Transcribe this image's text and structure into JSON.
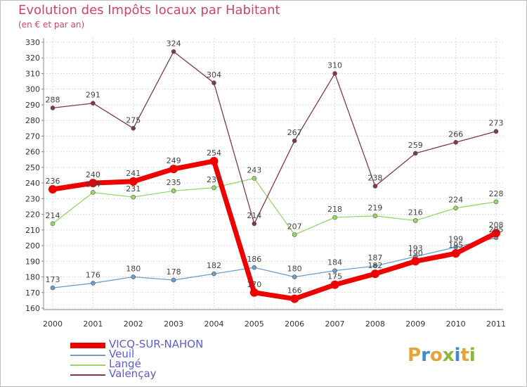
{
  "title": "Evolution des Impôts locaux par Habitant",
  "subtitle": "(en € et par an)",
  "logo": {
    "letters": [
      "P",
      "r",
      "o",
      "x",
      "i",
      "t",
      "i"
    ],
    "colors": [
      "#e8a23a",
      "#3e8ad8",
      "#e8a23a",
      "#8ab83a",
      "#3e8ad8",
      "#e8a23a",
      "#8ab83a"
    ]
  },
  "chart_data": {
    "type": "line",
    "categories": [
      "2000",
      "2001",
      "2002",
      "2003",
      "2004",
      "2005",
      "2006",
      "2007",
      "2008",
      "2009",
      "2010",
      "2011"
    ],
    "ylim": [
      160,
      330
    ],
    "yticks": [
      160,
      170,
      180,
      190,
      200,
      210,
      220,
      230,
      240,
      250,
      260,
      270,
      280,
      290,
      300,
      310,
      320,
      330
    ],
    "grid": true,
    "legend_position": "bottom-left",
    "series": [
      {
        "name": "VICQ-SUR-NAHON",
        "color": "#ee0000",
        "values": [
          236,
          240,
          241,
          249,
          254,
          170,
          166,
          175,
          182,
          190,
          195,
          208
        ],
        "labels": [
          "236",
          "240",
          "241",
          "249",
          "254",
          "170",
          "166",
          "175",
          "182",
          "190",
          "195",
          "208"
        ]
      },
      {
        "name": "Veuil",
        "color": "#6e9ec8",
        "values": [
          173,
          176,
          180,
          178,
          182,
          186,
          180,
          184,
          187,
          193,
          199,
          205
        ],
        "labels": [
          "173",
          "176",
          "180",
          "178",
          "182",
          "186",
          "180",
          "184",
          "187",
          "193",
          "199",
          "205"
        ]
      },
      {
        "name": "Langé",
        "color": "#98d66a",
        "values": [
          214,
          234,
          231,
          235,
          237,
          243,
          207,
          218,
          219,
          216,
          224,
          228
        ],
        "labels": [
          "214",
          "234",
          "231",
          "235",
          "237",
          "243",
          "207",
          "218",
          "219",
          "216",
          "224",
          "228"
        ]
      },
      {
        "name": "Valençay",
        "color": "#7e3a48",
        "values": [
          288,
          291,
          275,
          324,
          304,
          214,
          267,
          310,
          238,
          259,
          266,
          273
        ],
        "labels": [
          "288",
          "291",
          "275",
          "324",
          "304",
          "214",
          "267",
          "310",
          "238",
          "259",
          "266",
          "273"
        ]
      }
    ]
  }
}
